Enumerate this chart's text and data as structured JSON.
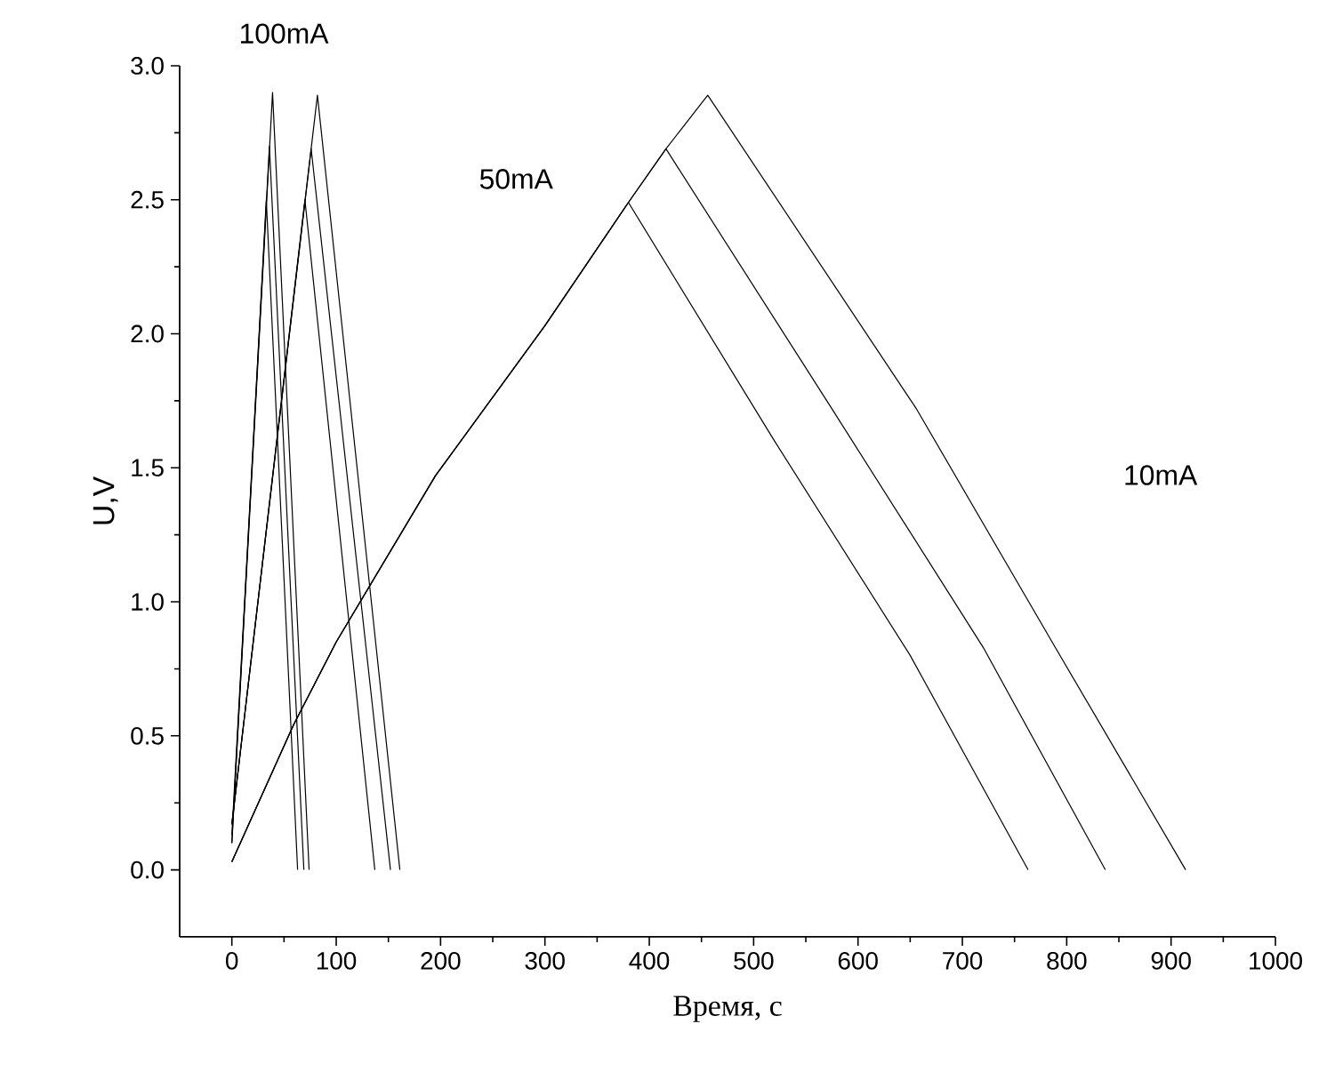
{
  "chart_data": {
    "type": "line",
    "xlabel": "Время, с",
    "ylabel": "U,V",
    "annotations": [
      "100mA",
      "50mA",
      "10mA"
    ],
    "xlim": [
      -50,
      1000
    ],
    "ylim": [
      -0.25,
      3.0
    ],
    "xticks": [
      0,
      100,
      200,
      300,
      400,
      500,
      600,
      700,
      800,
      900,
      1000
    ],
    "yticks": [
      {
        "value": 0,
        "label": "0.0"
      },
      {
        "value": 0.5,
        "label": "0.5"
      },
      {
        "value": 1,
        "label": "1.0"
      },
      {
        "value": 1.5,
        "label": "1.5"
      },
      {
        "value": 2,
        "label": "2.0"
      },
      {
        "value": 2.5,
        "label": "2.5"
      },
      {
        "value": 3,
        "label": "3.0"
      }
    ],
    "marker": "none",
    "line_style": "solid",
    "series": [
      {
        "color": "#000000",
        "x": [
          0,
          33,
          63
        ],
        "values": [
          0.1,
          2.5,
          0
        ]
      },
      {
        "color": "#000000",
        "x": [
          0,
          36,
          69
        ],
        "values": [
          0.13,
          2.7,
          0
        ]
      },
      {
        "color": "#000000",
        "x": [
          0,
          39,
          74
        ],
        "values": [
          0.1,
          2.9,
          0
        ]
      },
      {
        "color": "#000000",
        "x": [
          0,
          70,
          137
        ],
        "values": [
          0.17,
          2.5,
          0
        ]
      },
      {
        "color": "#000000",
        "x": [
          0,
          76,
          152
        ],
        "values": [
          0.17,
          2.69,
          0
        ]
      },
      {
        "color": "#000000",
        "x": [
          0,
          82,
          161
        ],
        "values": [
          0.17,
          2.89,
          0
        ]
      },
      {
        "color": "#000000",
        "x": [
          0,
          59,
          100,
          195,
          300,
          380,
          520,
          650,
          763
        ],
        "values": [
          0.03,
          0.54,
          0.85,
          1.47,
          2.03,
          2.49,
          1.6,
          0.8,
          0
        ]
      },
      {
        "color": "#000000",
        "x": [
          0,
          59,
          100,
          195,
          300,
          380,
          416,
          575,
          720,
          837
        ],
        "values": [
          0.03,
          0.54,
          0.85,
          1.47,
          2.03,
          2.49,
          2.69,
          1.72,
          0.83,
          0
        ]
      },
      {
        "color": "#000000",
        "x": [
          0,
          59,
          100,
          195,
          300,
          380,
          416,
          456,
          656,
          789,
          914
        ],
        "values": [
          0.03,
          0.54,
          0.85,
          1.47,
          2.03,
          2.49,
          2.69,
          2.89,
          1.72,
          0.83,
          0
        ]
      }
    ]
  }
}
